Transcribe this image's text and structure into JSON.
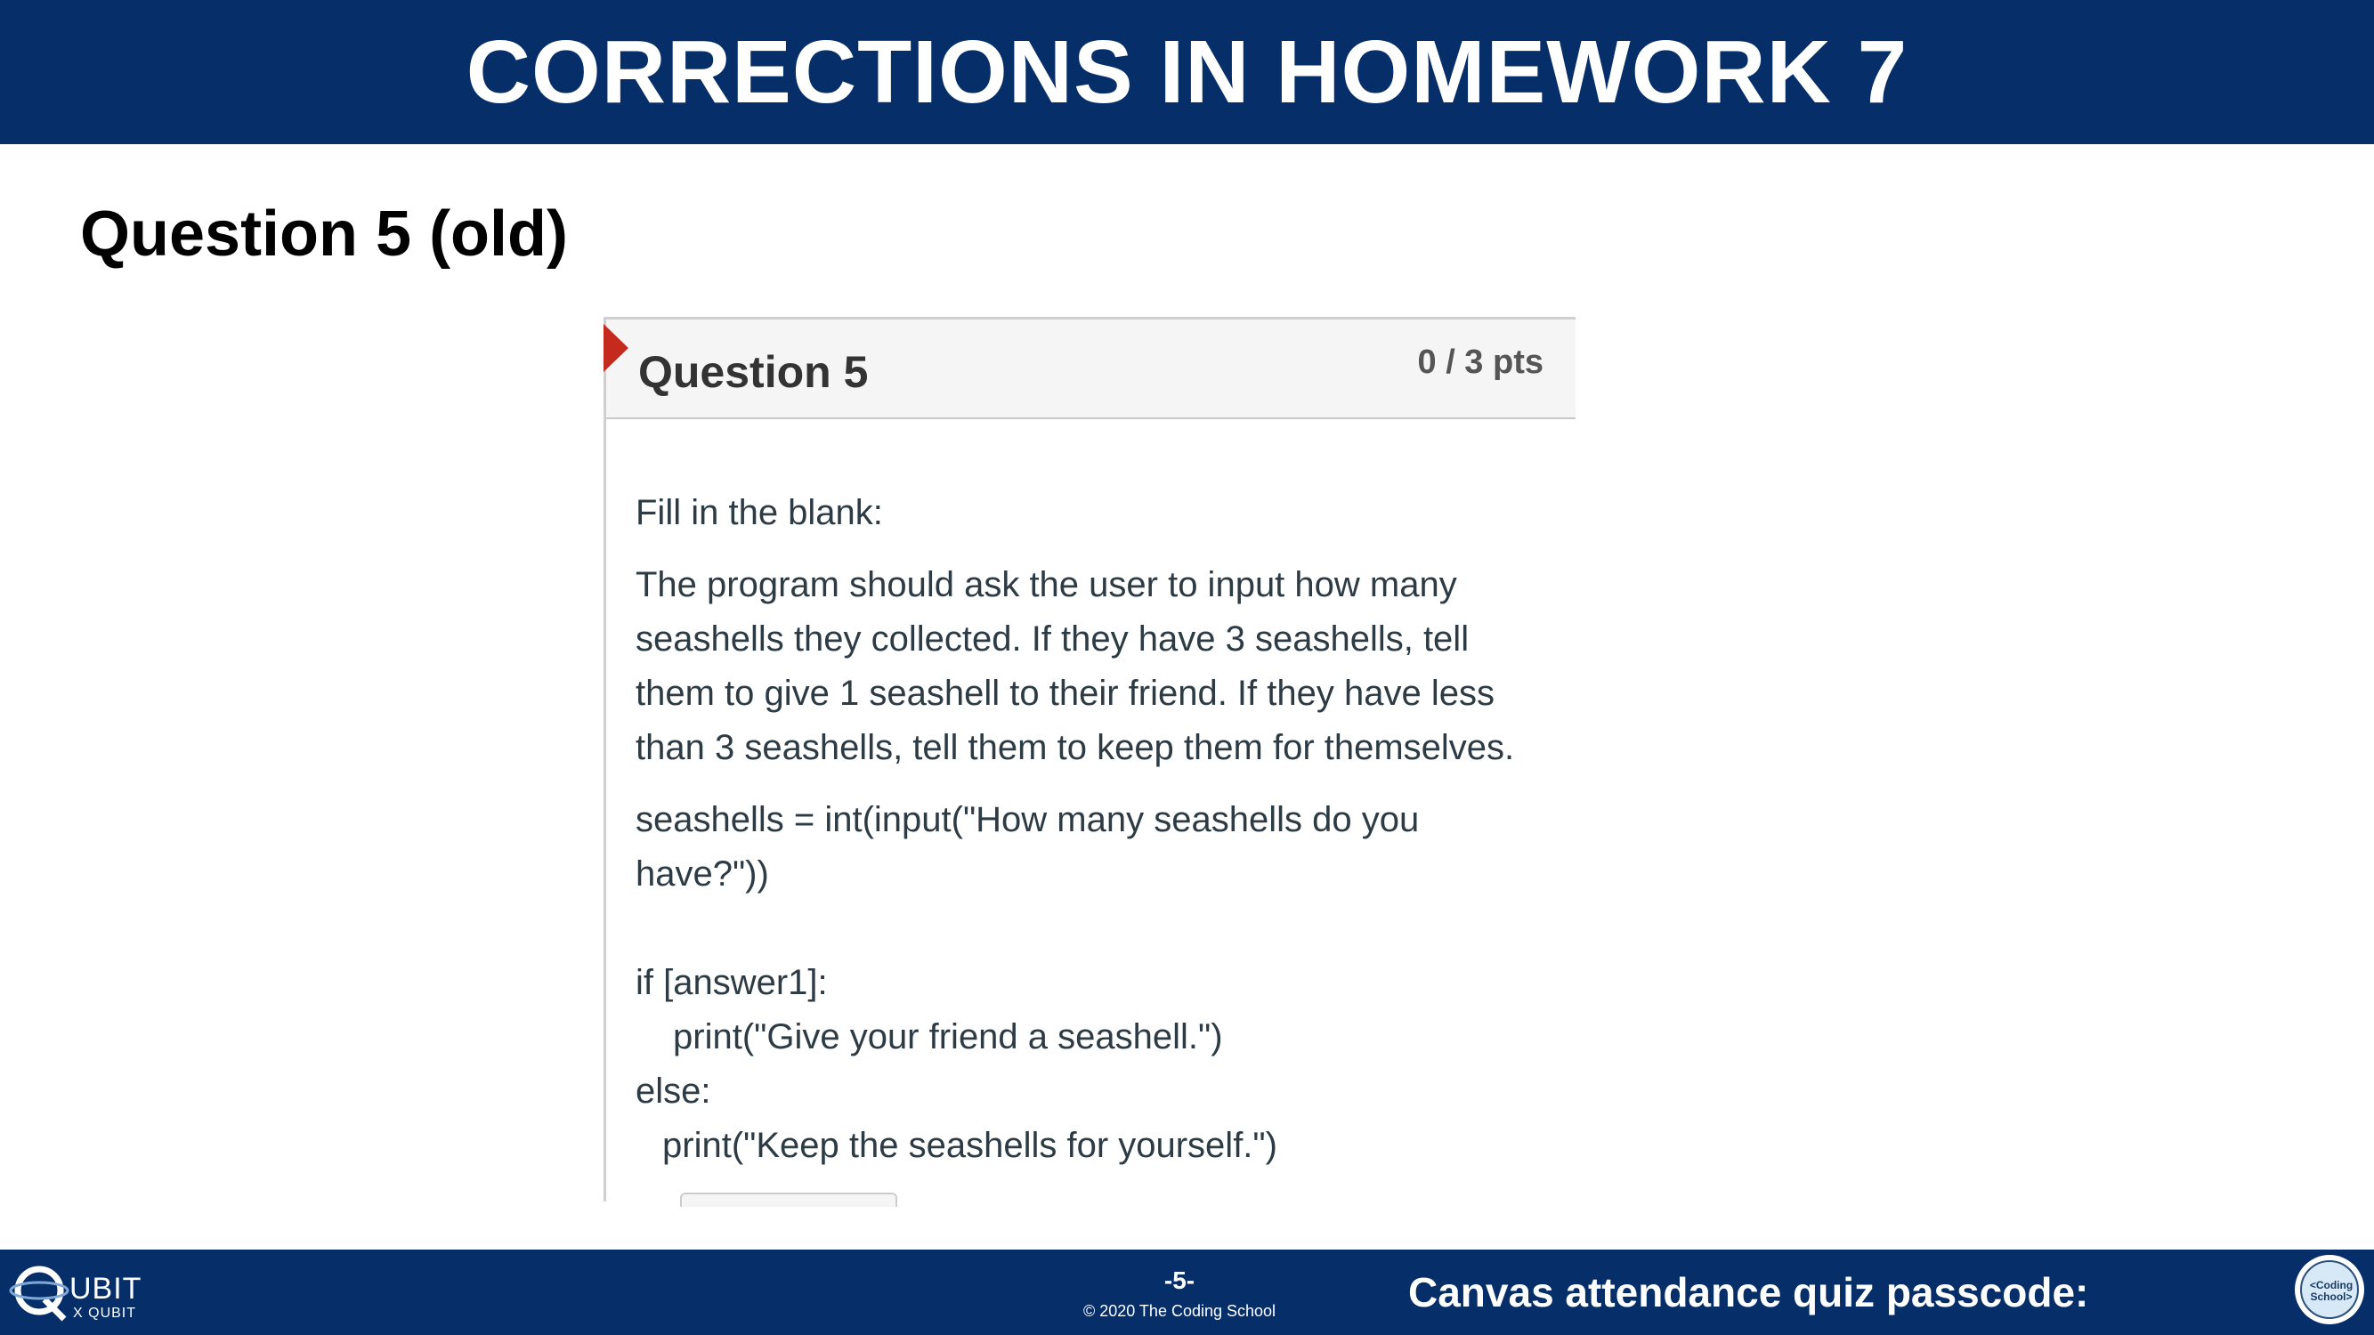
{
  "header": {
    "title": "CORRECTIONS IN HOMEWORK 7"
  },
  "slide": {
    "subtitle": "Question 5 (old)"
  },
  "question": {
    "title": "Question 5",
    "points": "0 / 3 pts",
    "prompt": "Fill in the blank:",
    "description": [
      "The program should ask the user to input how many",
      "seashells they collected. If they have 3 seashells, tell",
      "them to give 1 seashell to their friend. If they have less",
      "than 3 seashells, tell them to keep them for themselves."
    ],
    "code": {
      "line1": "seashells = int(input(\"How many seashells do you have?\"))",
      "line2": "if [answer1]:",
      "line3": "print(\"Give your friend a seashell.\")",
      "line4": "else:",
      "line5": "print(\"Keep the seashells for yourself.\")"
    }
  },
  "footer": {
    "logo_text": "UBIT",
    "logo_sub": "X QUBIT",
    "page_number": "-5-",
    "copyright": "© 2020 The Coding School",
    "passcode_label": "Canvas attendance quiz passcode:",
    "seal_text": "<Coding School>"
  },
  "colors": {
    "header_bg": "#062e69",
    "flag": "#c42a1d"
  }
}
